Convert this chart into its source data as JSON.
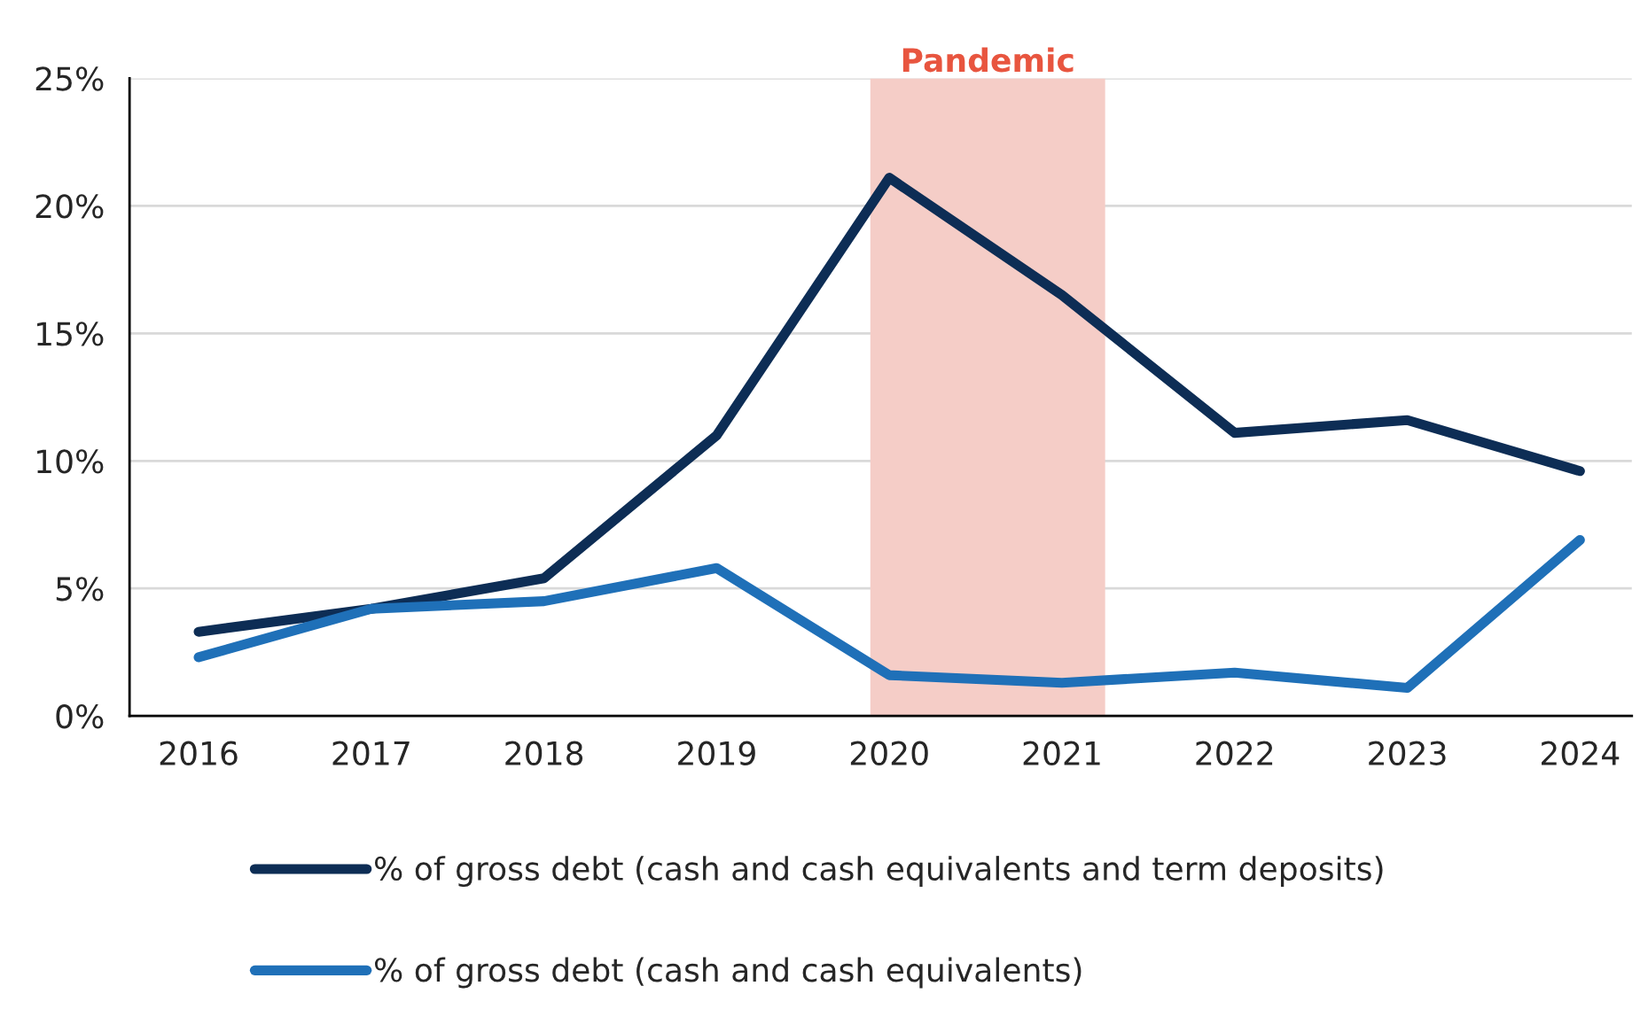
{
  "chart_data": {
    "type": "line",
    "x": [
      2016,
      2017,
      2018,
      2019,
      2020,
      2021,
      2022,
      2023,
      2024
    ],
    "series": [
      {
        "name": "% of gross debt (cash and cash equivalents and term deposits)",
        "color": "#0d2d55",
        "values": [
          3.3,
          4.2,
          5.4,
          11.0,
          21.1,
          16.5,
          11.1,
          11.6,
          9.6
        ]
      },
      {
        "name": "% of gross debt (cash and cash equivalents)",
        "color": "#1f70b8",
        "values": [
          2.3,
          4.2,
          4.5,
          5.8,
          1.6,
          1.3,
          1.7,
          1.1,
          6.9
        ]
      }
    ],
    "xlim": [
      2015.6,
      2024.3
    ],
    "xticks": [
      2016,
      2017,
      2018,
      2019,
      2020,
      2021,
      2022,
      2023,
      2024
    ],
    "ylim": [
      0,
      25
    ],
    "yticks": [
      {
        "value": 0,
        "label": "0%"
      },
      {
        "value": 5,
        "label": "5%"
      },
      {
        "value": 10,
        "label": "10%"
      },
      {
        "value": 15,
        "label": "15%"
      },
      {
        "value": 20,
        "label": "20%"
      },
      {
        "value": 25,
        "label": "25%"
      }
    ],
    "bands": [
      {
        "axis": "x",
        "from": 2019.89,
        "to": 2021.25,
        "label": "Pandemic",
        "color": "#f5cdc7"
      }
    ],
    "grid": "y",
    "legend": "bottom",
    "line_style": "solid",
    "marker": "none"
  }
}
